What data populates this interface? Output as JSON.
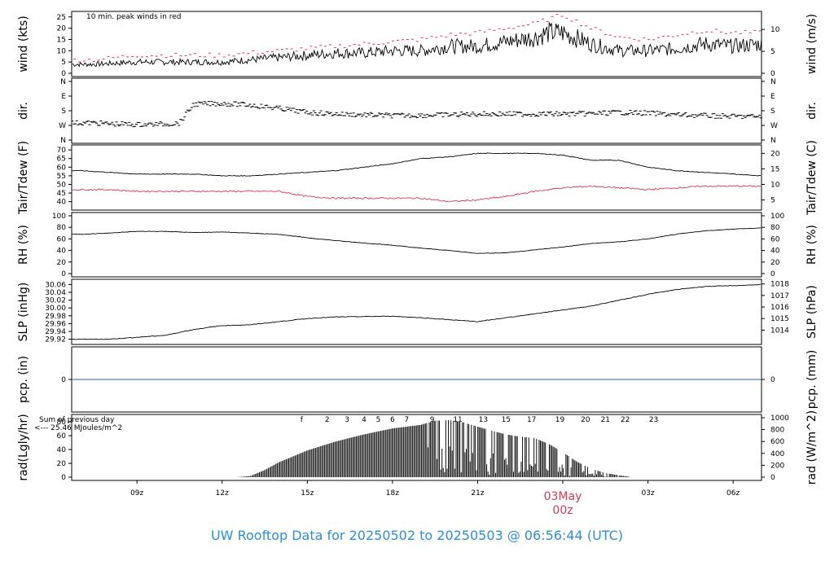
{
  "caption": "UW Rooftop Data for 20250502  to  20250503 @ 06:56:44  (UTC)",
  "colors": {
    "series_black": "#000000",
    "dewpoint_red": "#d23a5a",
    "peak_red": "#d23a5a",
    "precip_blue": "#2b62b8",
    "radiation_purple": "#a020f0",
    "date_label": "#d23a5a",
    "caption_blue": "#2a8fd4"
  },
  "chart_data": [
    {
      "name": "wind",
      "type": "line",
      "ylabel_left": "wind (kts)",
      "ylabel_right": "wind (m/s)",
      "left_ticks": [
        "0",
        "5",
        "10",
        "15",
        "20",
        "25"
      ],
      "right_ticks": [
        "0",
        "5",
        "10"
      ],
      "ylim": [
        0,
        26
      ],
      "annotation": "10 min. peak winds in red",
      "x_hours": [
        7.5,
        9,
        10.5,
        12,
        13,
        14,
        15,
        16,
        17,
        18,
        19,
        20,
        21,
        22,
        23,
        23.5,
        24,
        25,
        26,
        27,
        28,
        29,
        30,
        31
      ],
      "speed_kts": [
        4,
        5,
        5,
        5,
        6,
        7,
        8,
        9,
        9,
        10,
        10,
        12,
        12,
        14,
        16,
        18,
        18,
        13,
        10,
        10,
        11,
        13,
        12,
        13
      ],
      "peak_kts": [
        6,
        8,
        8,
        8,
        9,
        10,
        11,
        12,
        13,
        14,
        15,
        17,
        18,
        20,
        22,
        24,
        26,
        20,
        16,
        15,
        17,
        19,
        18,
        18
      ]
    },
    {
      "name": "direction",
      "type": "scatter",
      "ylabel_left": "dir.",
      "ylabel_right": "dir.",
      "ticks": [
        "N",
        "W",
        "S",
        "E",
        "N"
      ],
      "x_hours": [
        7.5,
        8,
        9,
        10,
        10.5,
        11,
        12,
        13,
        14,
        15,
        16,
        17,
        18,
        19,
        20,
        21,
        22,
        23,
        24,
        25,
        26,
        27,
        28,
        29,
        30,
        31
      ],
      "dir_deg": [
        255,
        260,
        265,
        262,
        255,
        140,
        135,
        145,
        165,
        190,
        200,
        205,
        210,
        208,
        205,
        200,
        200,
        200,
        200,
        198,
        190,
        195,
        205,
        210,
        215,
        215
      ]
    },
    {
      "name": "temperature",
      "type": "line",
      "ylabel_left": "Tair/Tdew (F)",
      "ylabel_right": "Tair/Tdew (C)",
      "left_ticks": [
        "40",
        "45",
        "50",
        "55",
        "60",
        "65",
        "70"
      ],
      "right_ticks": [
        "5",
        "10",
        "15",
        "20"
      ],
      "ylim": [
        37,
        71
      ],
      "x_hours": [
        7,
        8,
        9,
        10,
        11,
        12,
        13,
        14,
        15,
        16,
        17,
        18,
        19,
        20,
        21,
        22,
        23,
        24,
        25,
        26,
        27,
        28,
        29,
        30,
        31
      ],
      "series": [
        {
          "name": "Tair",
          "values": [
            58,
            57,
            56,
            56,
            56,
            55,
            55,
            56,
            57,
            58,
            60,
            62,
            65,
            66,
            68,
            68,
            68,
            67,
            64,
            64,
            60,
            58,
            57,
            56,
            55
          ]
        },
        {
          "name": "Tdew",
          "values": [
            47,
            47,
            46,
            46,
            46,
            46,
            46,
            46,
            43,
            42,
            42,
            42,
            42,
            40,
            41,
            43,
            46,
            48,
            49,
            48,
            47,
            48,
            49,
            49,
            49
          ]
        }
      ]
    },
    {
      "name": "rh",
      "type": "line",
      "ylabel_left": "RH (%)",
      "ylabel_right": "RH (%)",
      "ticks": [
        "0",
        "20",
        "40",
        "60",
        "80",
        "100"
      ],
      "ylim": [
        0,
        100
      ],
      "x_hours": [
        7,
        8,
        9,
        10,
        11,
        12,
        13,
        14,
        15,
        16,
        17,
        18,
        19,
        20,
        21,
        22,
        23,
        24,
        25,
        26,
        27,
        28,
        29,
        30,
        31
      ],
      "values": [
        68,
        70,
        73,
        73,
        71,
        72,
        70,
        68,
        62,
        57,
        53,
        49,
        44,
        40,
        35,
        36,
        41,
        46,
        52,
        55,
        60,
        68,
        74,
        77,
        79
      ]
    },
    {
      "name": "slp",
      "type": "line",
      "ylabel_left": "SLP (inHg)",
      "ylabel_right": "SLP (hPa)",
      "left_ticks": [
        "29.92",
        "29.94",
        "29.96",
        "29.98",
        "30.00",
        "30.02",
        "30.04",
        "30.06"
      ],
      "right_ticks": [
        "1014",
        "1015",
        "1016",
        "1017",
        "1018"
      ],
      "ylim": [
        29.915,
        30.065
      ],
      "x_hours": [
        7,
        8,
        9,
        10,
        11,
        12,
        13,
        14,
        15,
        16,
        17,
        18,
        19,
        20,
        21,
        22,
        23,
        24,
        25,
        26,
        27,
        28,
        29,
        30,
        31
      ],
      "values": [
        29.92,
        29.92,
        29.925,
        29.93,
        29.945,
        29.955,
        29.957,
        29.965,
        29.973,
        29.977,
        29.978,
        29.979,
        29.975,
        29.97,
        29.965,
        29.975,
        29.985,
        29.995,
        30.005,
        30.02,
        30.035,
        30.047,
        30.055,
        30.057,
        30.06
      ]
    },
    {
      "name": "precipitation",
      "type": "line",
      "ylabel_left": "pcp. (in)",
      "ylabel_right": "pcp. (mm)",
      "left_ticks": [
        "0"
      ],
      "right_ticks": [
        "0"
      ],
      "value": 0
    },
    {
      "name": "radiation",
      "type": "area",
      "ylabel_left": "rad(Lgly/hr)",
      "ylabel_right": "rad (W/m^2)",
      "left_ticks": [
        "0",
        "20",
        "40",
        "60",
        "80"
      ],
      "right_ticks": [
        "0",
        "200",
        "400",
        "600",
        "800",
        "1000"
      ],
      "ylim_wm2": [
        0,
        1000
      ],
      "x_hours": [
        12.5,
        13,
        13.5,
        14,
        15,
        16,
        17,
        18,
        19,
        19.5,
        20,
        20.5,
        21,
        21.5,
        22,
        22.5,
        23,
        23.5,
        24,
        24.5,
        25,
        25.5,
        26,
        26.5
      ],
      "values_wm2": [
        0,
        20,
        120,
        250,
        450,
        600,
        720,
        820,
        880,
        950,
        960,
        920,
        850,
        780,
        720,
        680,
        660,
        560,
        420,
        260,
        140,
        70,
        30,
        0
      ],
      "annotation_line1": "Sum of previous day",
      "annotation_line2": "<--- 25.46 MJoules/m^2",
      "hour_labels": [
        "f",
        "2",
        "3",
        "4",
        "5",
        "6",
        "7",
        "9",
        "11",
        "13",
        "15",
        "17",
        "19",
        "20",
        "21",
        "22",
        "23"
      ]
    }
  ],
  "x_axis": {
    "ticks": [
      "09z",
      "12z",
      "15z",
      "18z",
      "21z",
      "03z",
      "06z"
    ],
    "date_label": "03May",
    "date_sublabel": "00z",
    "domain_hours": [
      6.7,
      31.0
    ]
  }
}
